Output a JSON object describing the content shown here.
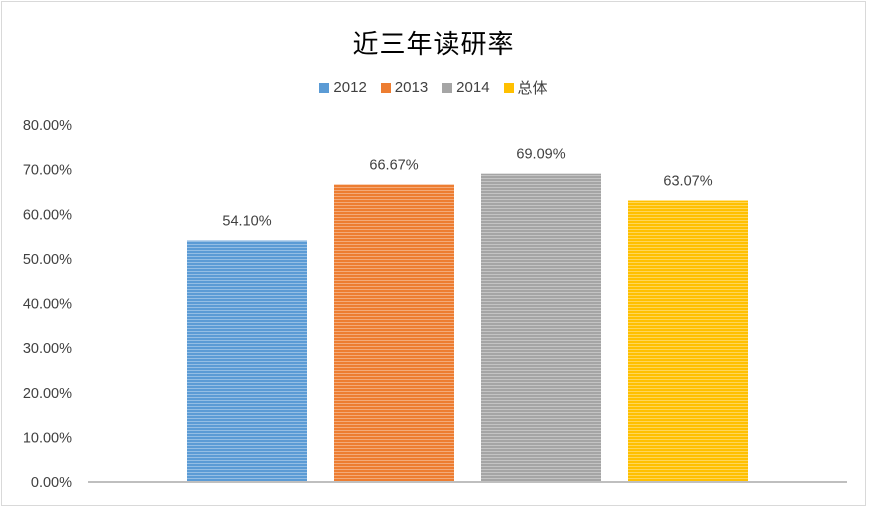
{
  "chart_data": {
    "type": "bar",
    "title": "近三年读研率",
    "xlabel": "",
    "ylabel": "",
    "ylim": [
      0,
      0.8
    ],
    "yticks": [
      "0.00%",
      "10.00%",
      "20.00%",
      "30.00%",
      "40.00%",
      "50.00%",
      "60.00%",
      "70.00%",
      "80.00%"
    ],
    "legend_position": "top",
    "grid": false,
    "series": [
      {
        "name": "2012",
        "value": 0.541,
        "label": "54.10%",
        "color": "#5b9bd5"
      },
      {
        "name": "2013",
        "value": 0.6667,
        "label": "66.67%",
        "color": "#ed7d31"
      },
      {
        "name": "2014",
        "value": 0.6909,
        "label": "69.09%",
        "color": "#a5a5a5"
      },
      {
        "name": "总体",
        "value": 0.6307,
        "label": "63.07%",
        "color": "#ffc000"
      }
    ]
  }
}
